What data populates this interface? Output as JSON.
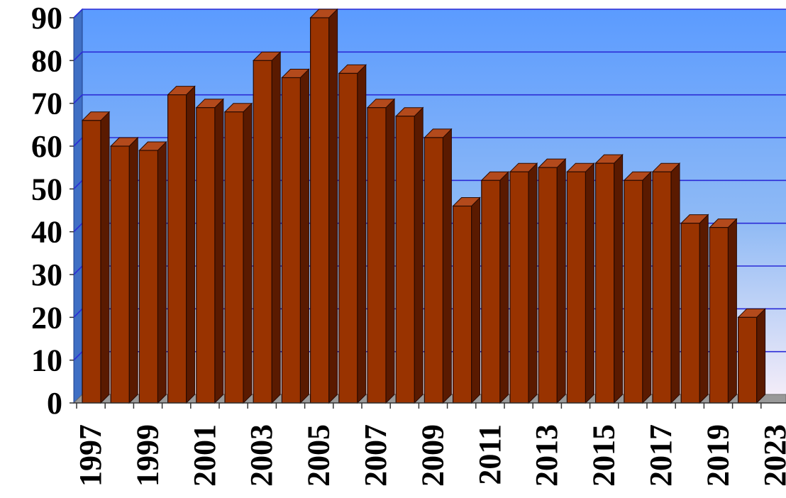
{
  "chart_data": {
    "type": "bar",
    "categories": [
      "1997",
      "1998",
      "1999",
      "2000",
      "2001",
      "2002",
      "2003",
      "2004",
      "2005",
      "2006",
      "2007",
      "2008",
      "2009",
      "2010",
      "2011",
      "2012",
      "2013",
      "2014",
      "2015",
      "2016",
      "2017",
      "2018",
      "2019",
      "2021"
    ],
    "values": [
      66,
      60,
      59,
      72,
      69,
      68,
      80,
      76,
      90,
      77,
      69,
      67,
      62,
      46,
      52,
      54,
      55,
      54,
      56,
      52,
      54,
      42,
      41,
      20
    ],
    "x_tick_labels": [
      "1997",
      "1999",
      "2001",
      "2003",
      "2005",
      "2007",
      "2009",
      "2011",
      "2013",
      "2015",
      "2017",
      "2019",
      "2023"
    ],
    "y_tick_labels": [
      "0",
      "10",
      "20",
      "30",
      "40",
      "50",
      "60",
      "70",
      "80",
      "90"
    ],
    "ylim": [
      0,
      90
    ],
    "title": "",
    "xlabel": "",
    "ylabel": "",
    "grid": true,
    "legend": "none"
  },
  "colors": {
    "bar_front": "#993300",
    "bar_side": "#5a1a00",
    "bar_top": "#b34a1c",
    "bar_outline": "#2a0a00",
    "wall_top": "#5b9bff",
    "wall_bottom": "#f3ecf8",
    "gridline": "#2b2bd6",
    "floor": "#999999"
  }
}
